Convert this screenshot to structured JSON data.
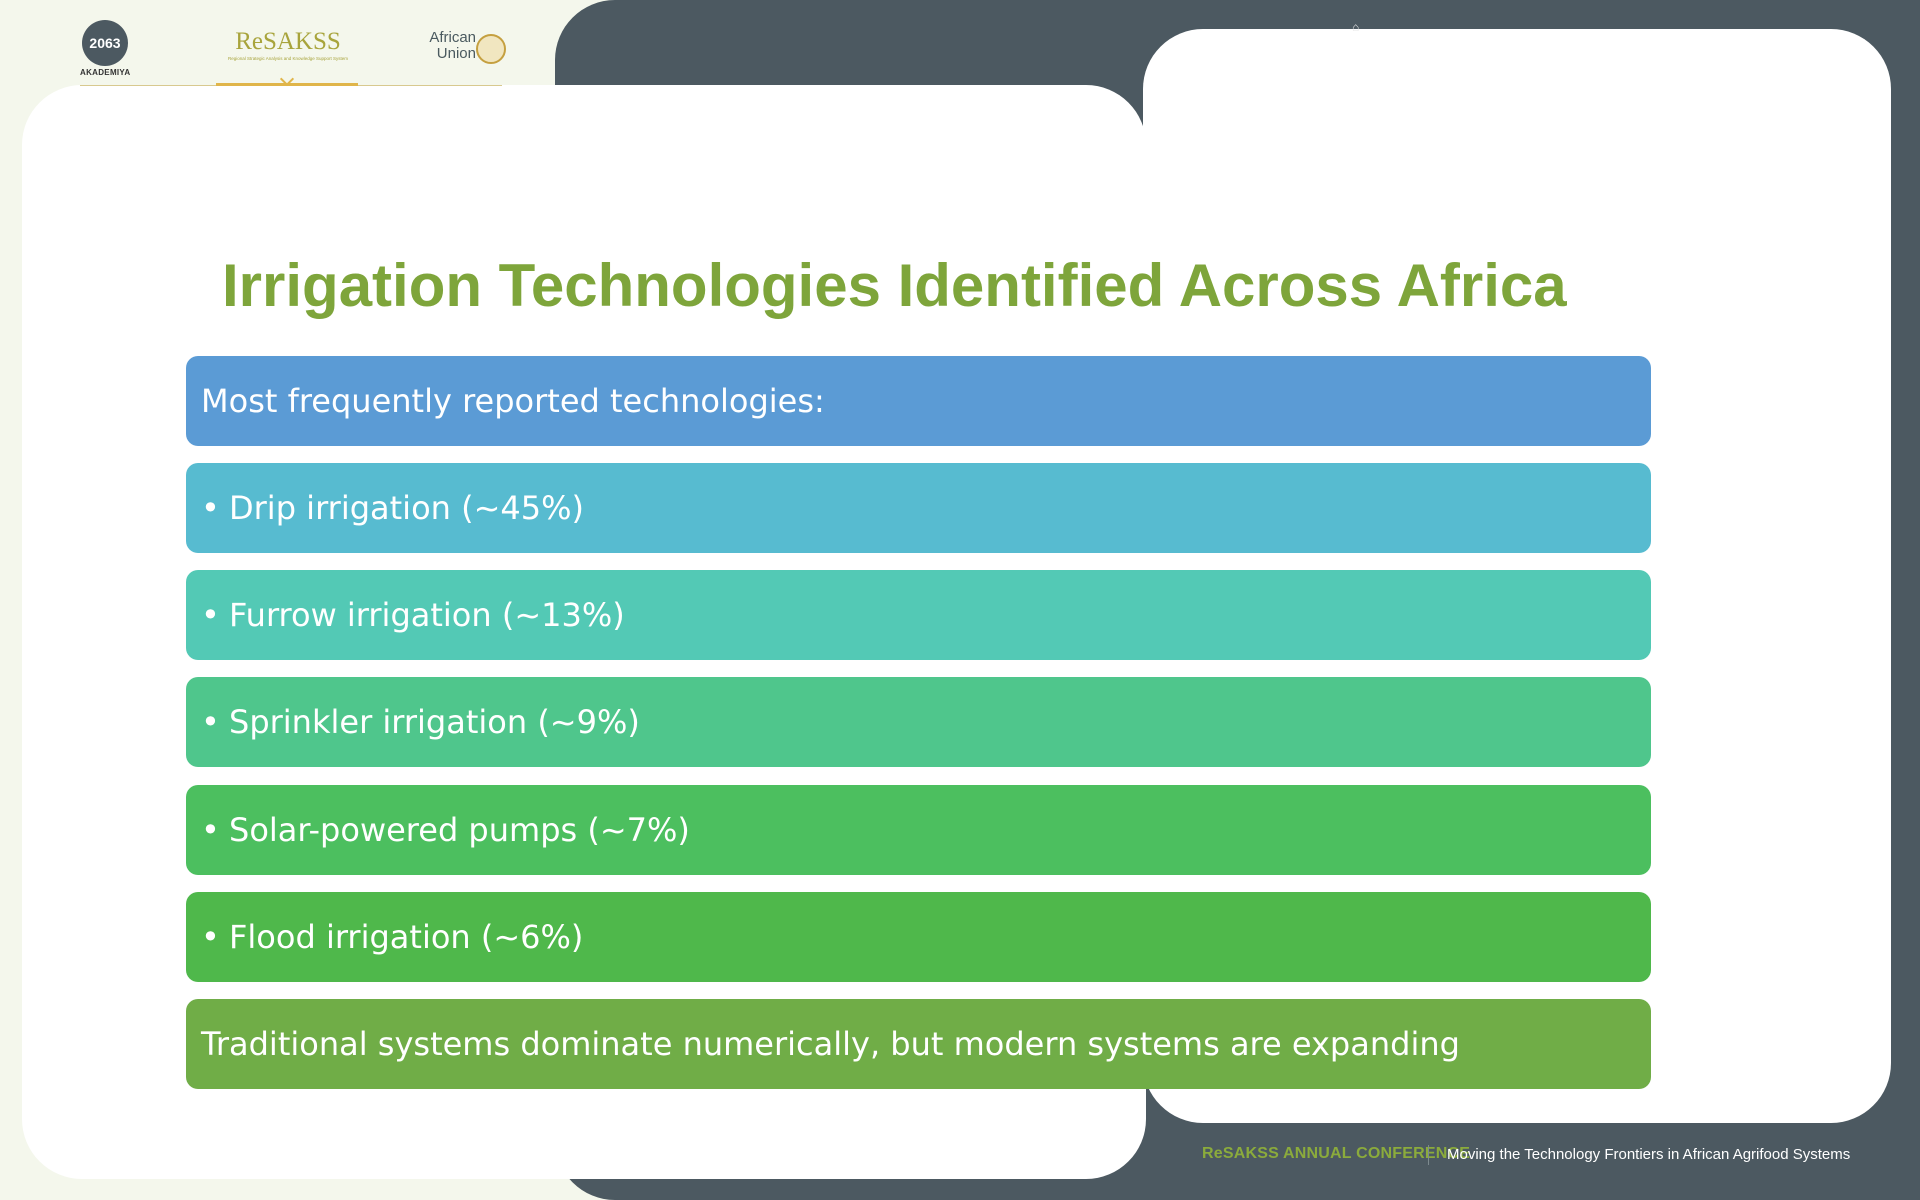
{
  "header": {
    "logos": {
      "akademiya": {
        "numerals": "2063",
        "label": "AKADEMIYA"
      },
      "resakss": {
        "name": "ReSAKSS",
        "tagline": "Regional Strategic Analysis and Knowledge Support System"
      },
      "african_union": {
        "line1": "African",
        "line2": "Union"
      }
    }
  },
  "slide": {
    "title": "Irrigation Technologies Identified Across Africa",
    "header_bar": "Most frequently reported technologies:",
    "items": [
      {
        "text": "Drip irrigation (~45%)",
        "color": "#57bbd0"
      },
      {
        "text": "Furrow irrigation (~13%)",
        "color": "#53c9b5"
      },
      {
        "text": "Sprinkler irrigation (~9%)",
        "color": "#4fc68c"
      },
      {
        "text": "Solar-powered pumps (~7%)",
        "color": "#4cbf5f"
      },
      {
        "text": "Flood irrigation (~6%)",
        "color": "#4fb84b"
      }
    ],
    "bullet": "•",
    "conclusion": "Traditional systems dominate numerically, but modern systems are expanding",
    "colors": {
      "title": "#7ea53b",
      "header_bar": "#5b9bd5",
      "conclusion_bar": "#70ad47"
    }
  },
  "footer": {
    "brand": "ReSAKSS ANNUAL CONFERENCE",
    "separator": "|",
    "tagline": "Moving the Technology Frontiers in African Agrifood Systems"
  }
}
